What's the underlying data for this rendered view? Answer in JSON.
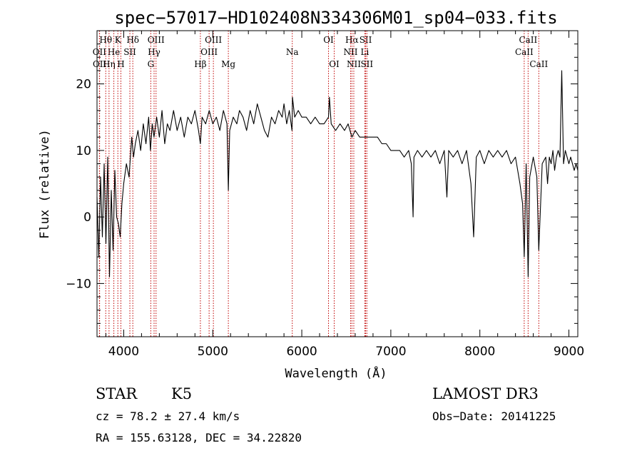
{
  "chart_data": {
    "type": "line",
    "title": "spec−57017−HD102408N334306M01_sp04−033.fits",
    "xlabel": "Wavelength (Å)",
    "ylabel": "Flux (relative)",
    "xlim": [
      3700,
      9100
    ],
    "ylim": [
      -18,
      28
    ],
    "xticks": [
      4000,
      5000,
      6000,
      7000,
      8000,
      9000
    ],
    "xtick_labels": [
      "4000",
      "5000",
      "6000",
      "7000",
      "8000",
      "9000"
    ],
    "yticks": [
      -10,
      0,
      10,
      20
    ],
    "ytick_labels": [
      "−10",
      "0",
      "10",
      "20"
    ],
    "series": [
      {
        "name": "spectrum",
        "color": "#000000",
        "points": [
          [
            3700,
            3
          ],
          [
            3720,
            -6
          ],
          [
            3740,
            6
          ],
          [
            3760,
            -3
          ],
          [
            3780,
            8
          ],
          [
            3800,
            -4
          ],
          [
            3820,
            9
          ],
          [
            3840,
            -9
          ],
          [
            3860,
            4
          ],
          [
            3880,
            -5
          ],
          [
            3900,
            7
          ],
          [
            3920,
            0
          ],
          [
            3940,
            -1
          ],
          [
            3960,
            -3
          ],
          [
            3980,
            2
          ],
          [
            4000,
            5
          ],
          [
            4030,
            8
          ],
          [
            4060,
            6
          ],
          [
            4090,
            12
          ],
          [
            4110,
            9
          ],
          [
            4130,
            11
          ],
          [
            4160,
            13
          ],
          [
            4190,
            10
          ],
          [
            4220,
            14
          ],
          [
            4250,
            11
          ],
          [
            4280,
            15
          ],
          [
            4300,
            10
          ],
          [
            4320,
            14
          ],
          [
            4340,
            12
          ],
          [
            4370,
            15
          ],
          [
            4400,
            12
          ],
          [
            4430,
            16
          ],
          [
            4460,
            11
          ],
          [
            4490,
            14
          ],
          [
            4520,
            13
          ],
          [
            4560,
            16
          ],
          [
            4600,
            13
          ],
          [
            4640,
            15
          ],
          [
            4680,
            12
          ],
          [
            4720,
            15
          ],
          [
            4760,
            14
          ],
          [
            4800,
            16
          ],
          [
            4840,
            13
          ],
          [
            4861,
            11
          ],
          [
            4880,
            15
          ],
          [
            4920,
            14
          ],
          [
            4960,
            16
          ],
          [
            5000,
            14
          ],
          [
            5040,
            15
          ],
          [
            5080,
            13
          ],
          [
            5120,
            16
          ],
          [
            5160,
            14
          ],
          [
            5175,
            4
          ],
          [
            5190,
            13
          ],
          [
            5230,
            15
          ],
          [
            5270,
            14
          ],
          [
            5300,
            16
          ],
          [
            5340,
            15
          ],
          [
            5380,
            13
          ],
          [
            5420,
            16
          ],
          [
            5460,
            14
          ],
          [
            5500,
            17
          ],
          [
            5540,
            15
          ],
          [
            5580,
            13
          ],
          [
            5620,
            12
          ],
          [
            5660,
            15
          ],
          [
            5700,
            14
          ],
          [
            5740,
            16
          ],
          [
            5780,
            15
          ],
          [
            5800,
            17
          ],
          [
            5830,
            14
          ],
          [
            5860,
            16
          ],
          [
            5890,
            13
          ],
          [
            5895,
            18
          ],
          [
            5920,
            15
          ],
          [
            5960,
            16
          ],
          [
            6000,
            15
          ],
          [
            6050,
            15
          ],
          [
            6100,
            14
          ],
          [
            6150,
            15
          ],
          [
            6200,
            14
          ],
          [
            6250,
            14
          ],
          [
            6300,
            15
          ],
          [
            6310,
            18
          ],
          [
            6330,
            14
          ],
          [
            6380,
            13
          ],
          [
            6430,
            14
          ],
          [
            6480,
            13
          ],
          [
            6520,
            14
          ],
          [
            6563,
            12
          ],
          [
            6600,
            13
          ],
          [
            6650,
            12
          ],
          [
            6700,
            12
          ],
          [
            6750,
            12
          ],
          [
            6800,
            12
          ],
          [
            6850,
            12
          ],
          [
            6900,
            11
          ],
          [
            6950,
            11
          ],
          [
            7000,
            10
          ],
          [
            7050,
            10
          ],
          [
            7100,
            10
          ],
          [
            7150,
            9
          ],
          [
            7200,
            10
          ],
          [
            7230,
            8
          ],
          [
            7250,
            0
          ],
          [
            7260,
            9
          ],
          [
            7300,
            10
          ],
          [
            7350,
            9
          ],
          [
            7400,
            10
          ],
          [
            7450,
            9
          ],
          [
            7500,
            10
          ],
          [
            7550,
            8
          ],
          [
            7600,
            10
          ],
          [
            7630,
            3
          ],
          [
            7650,
            10
          ],
          [
            7700,
            9
          ],
          [
            7750,
            10
          ],
          [
            7800,
            8
          ],
          [
            7850,
            10
          ],
          [
            7900,
            5
          ],
          [
            7930,
            -3
          ],
          [
            7960,
            9
          ],
          [
            8000,
            10
          ],
          [
            8050,
            8
          ],
          [
            8100,
            10
          ],
          [
            8150,
            9
          ],
          [
            8200,
            10
          ],
          [
            8250,
            9
          ],
          [
            8300,
            10
          ],
          [
            8350,
            8
          ],
          [
            8400,
            9
          ],
          [
            8450,
            5
          ],
          [
            8480,
            2
          ],
          [
            8498,
            -6
          ],
          [
            8520,
            8
          ],
          [
            8542,
            -9
          ],
          [
            8560,
            6
          ],
          [
            8600,
            9
          ],
          [
            8640,
            6
          ],
          [
            8662,
            -5
          ],
          [
            8700,
            8
          ],
          [
            8740,
            9
          ],
          [
            8760,
            5
          ],
          [
            8780,
            9
          ],
          [
            8800,
            8
          ],
          [
            8820,
            10
          ],
          [
            8840,
            7
          ],
          [
            8860,
            9
          ],
          [
            8880,
            10
          ],
          [
            8900,
            9
          ],
          [
            8920,
            22
          ],
          [
            8940,
            8
          ],
          [
            8960,
            10
          ],
          [
            8980,
            9
          ],
          [
            9000,
            8
          ],
          [
            9020,
            9
          ],
          [
            9040,
            8
          ],
          [
            9060,
            7
          ],
          [
            9080,
            8
          ],
          [
            9100,
            7
          ]
        ]
      }
    ],
    "line_markers": [
      {
        "label": "Hθ",
        "wavelength": 3798,
        "row": 1
      },
      {
        "label": "OII",
        "wavelength": 3727,
        "row": 2
      },
      {
        "label": "OII",
        "wavelength": 3729,
        "row": 3
      },
      {
        "label": "K",
        "wavelength": 3934,
        "row": 1
      },
      {
        "label": "He",
        "wavelength": 3889,
        "row": 2
      },
      {
        "label": "Hη",
        "wavelength": 3835,
        "row": 3
      },
      {
        "label": "Hδ",
        "wavelength": 4102,
        "row": 1
      },
      {
        "label": "SII",
        "wavelength": 4069,
        "row": 2
      },
      {
        "label": "H",
        "wavelength": 3968,
        "row": 3
      },
      {
        "label": "OIII",
        "wavelength": 4363,
        "row": 1
      },
      {
        "label": "Hγ",
        "wavelength": 4341,
        "row": 2
      },
      {
        "label": "G",
        "wavelength": 4304,
        "row": 3
      },
      {
        "label": "OIII",
        "wavelength": 5007,
        "row": 1
      },
      {
        "label": "OIII",
        "wavelength": 4959,
        "row": 2
      },
      {
        "label": "Hβ",
        "wavelength": 4861,
        "row": 3
      },
      {
        "label": "Mg",
        "wavelength": 5175,
        "row": 3
      },
      {
        "label": "Na",
        "wavelength": 5893,
        "row": 2
      },
      {
        "label": "OI",
        "wavelength": 6300,
        "row": 1
      },
      {
        "label": "OI",
        "wavelength": 6364,
        "row": 3
      },
      {
        "label": "Hα",
        "wavelength": 6563,
        "row": 1
      },
      {
        "label": "NII",
        "wavelength": 6548,
        "row": 2
      },
      {
        "label": "NII",
        "wavelength": 6584,
        "row": 3
      },
      {
        "label": "SII",
        "wavelength": 6717,
        "row": 1
      },
      {
        "label": "Li",
        "wavelength": 6708,
        "row": 2
      },
      {
        "label": "SII",
        "wavelength": 6731,
        "row": 3
      },
      {
        "label": "CaII",
        "wavelength": 8542,
        "row": 1
      },
      {
        "label": "CaII",
        "wavelength": 8498,
        "row": 2
      },
      {
        "label": "CaII",
        "wavelength": 8662,
        "row": 3
      }
    ],
    "marker_color": "#c00000"
  },
  "footer": {
    "object_class": "STAR",
    "subclass": "K5",
    "survey": "LAMOST DR3",
    "redshift": "cz = 78.2 ± 27.4 km/s",
    "obs_date": "Obs−Date: 20141225",
    "coords": "RA = 155.63128, DEC =  34.22820"
  }
}
